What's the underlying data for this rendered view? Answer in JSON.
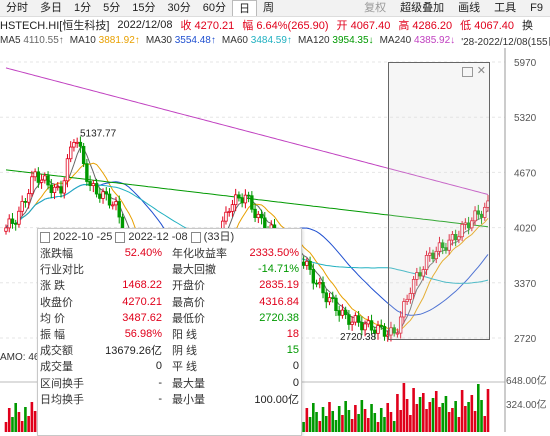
{
  "tabs": [
    "分时",
    "多日",
    "1分",
    "5分",
    "15分",
    "30分",
    "60分",
    "日",
    "周"
  ],
  "tab_active": "日",
  "right_menu": [
    "复权",
    "超级叠加",
    "画线",
    "工具",
    "F9"
  ],
  "title": {
    "symbol": "HSTECH.HI[恒生科技]",
    "date": "2022/12/08",
    "close": "收 4270.21",
    "change": "幅 6.64%(265.90)",
    "open": "开 4067.40",
    "high": "高 4286.20",
    "low": "低 4067.40",
    "more": "换"
  },
  "ma": [
    {
      "label": "MA5",
      "value": "4110.55↑",
      "color": "#666666"
    },
    {
      "label": "MA10",
      "value": "3881.92↑",
      "color": "#e8a000"
    },
    {
      "label": "MA30",
      "value": "3554.48↑",
      "color": "#2050d0"
    },
    {
      "label": "MA60",
      "value": "3484.59↑",
      "color": "#20b0c0"
    },
    {
      "label": "MA120",
      "value": "3954.35↓",
      "color": "#009900"
    },
    {
      "label": "MA240",
      "value": "4385.92↓",
      "color": "#c040c0"
    }
  ],
  "range_label": "'28-2022/12/08(155日)",
  "price_ticks": [
    "5970",
    "5320",
    "4670",
    "4020",
    "3370",
    "2720"
  ],
  "annotations": {
    "high": "5137.77",
    "low": "2720.38"
  },
  "volume": {
    "label": "AMO: 46",
    "ticks": [
      "648.00亿",
      "324.00亿"
    ]
  },
  "popup": {
    "start": "2022-10 -25",
    "end": "2022-12 -08",
    "days": "(33日)",
    "rows": [
      {
        "l1": "涨跌幅",
        "v1": "52.40%",
        "c1": "red",
        "l2": "年化收益率",
        "v2": "2333.50%",
        "c2": "red"
      },
      {
        "l1": "行业对比",
        "v1": "",
        "c1": "black",
        "l2": "最大回撤",
        "v2": "-14.71%",
        "c2": "green"
      },
      {
        "l1": "涨 跌",
        "v1": "1468.22",
        "c1": "red",
        "l2": "开盘价",
        "v2": "2835.19",
        "c2": "red"
      },
      {
        "l1": "收盘价",
        "v1": "4270.21",
        "c1": "red",
        "l2": "最高价",
        "v2": "4316.84",
        "c2": "red"
      },
      {
        "l1": "均 价",
        "v1": "3487.62",
        "c1": "red",
        "l2": "最低价",
        "v2": "2720.38",
        "c2": "green"
      },
      {
        "l1": "振 幅",
        "v1": "56.98%",
        "c1": "red",
        "l2": "阳 线",
        "v2": "18",
        "c2": "red"
      },
      {
        "l1": "成交额",
        "v1": "13679.26亿",
        "c1": "black",
        "l2": "阴 线",
        "v2": "15",
        "c2": "green"
      },
      {
        "l1": "成交量",
        "v1": "0",
        "c1": "black",
        "l2": "平 线",
        "v2": "0",
        "c2": "black"
      },
      {
        "l1": "区间换手",
        "v1": "-",
        "c1": "black",
        "l2": "最大量",
        "v2": "0",
        "c2": "black"
      },
      {
        "l1": "日均换手",
        "v1": "-",
        "c1": "black",
        "l2": "最小量",
        "v2": "100.00亿",
        "c2": "black"
      }
    ]
  }
}
